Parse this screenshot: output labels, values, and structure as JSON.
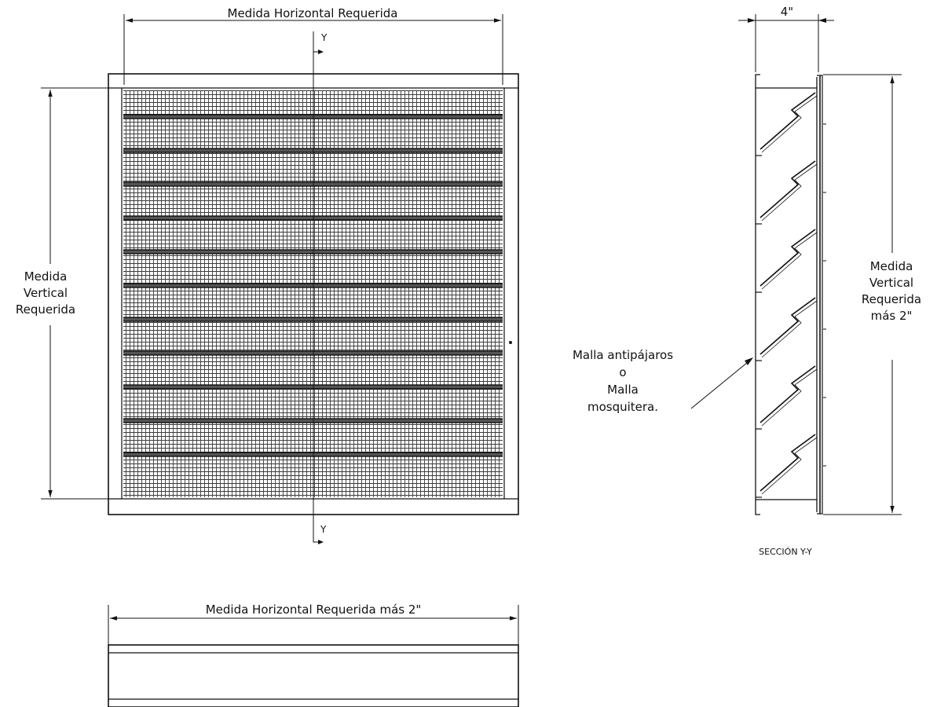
{
  "front_view": {
    "horizontal_dimension_label": "Medida Horizontal Requerida",
    "vertical_dimension_label": [
      "Medida",
      "Vertical",
      "Requerida"
    ],
    "section_marker_top": "Y",
    "section_marker_bottom": "Y"
  },
  "section_view": {
    "depth_dimension_label": "4\"",
    "vertical_dimension_label": [
      "Medida",
      "Vertical",
      "Requerida",
      "más 2\""
    ],
    "mesh_callout": [
      "Malla antipájaros",
      "o",
      "Malla",
      "mosquitera."
    ],
    "title": "SECCIÓN Y-Y"
  },
  "bottom_view": {
    "horizontal_dimension_label": "Medida Horizontal Requerida más 2\""
  }
}
